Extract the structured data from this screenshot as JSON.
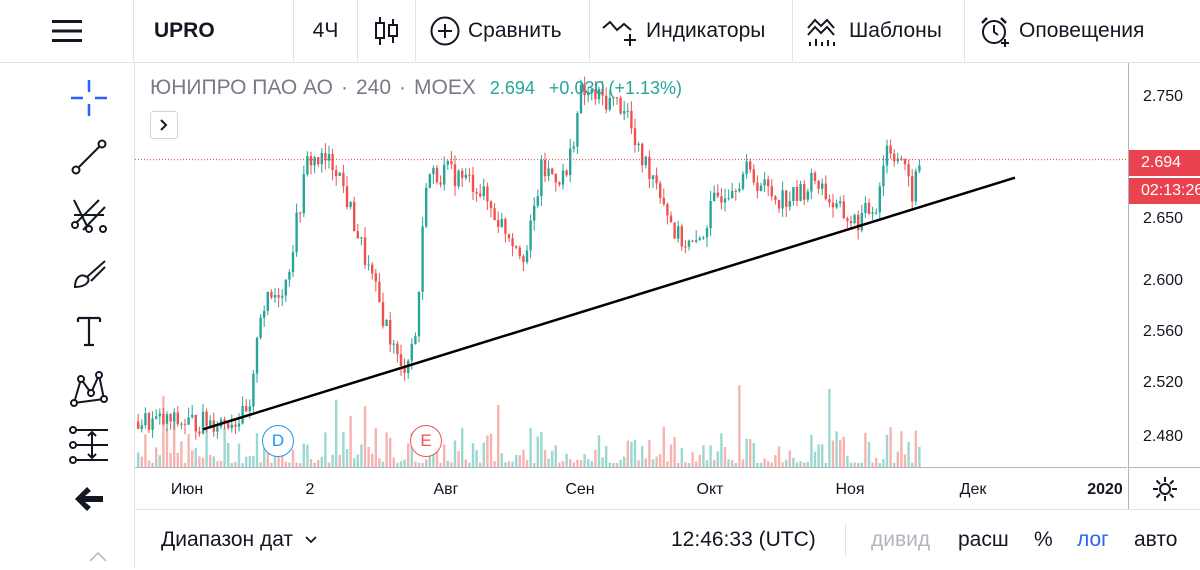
{
  "toolbar": {
    "symbol": "UPRO",
    "interval": "4Ч",
    "compare_label": "Сравнить",
    "indicators_label": "Индикаторы",
    "templates_label": "Шаблоны",
    "alerts_label": "Оповещения"
  },
  "legend": {
    "name": "ЮНИПРО ПАО АО",
    "interval": "240",
    "exchange": "MOEX",
    "last": "2.694",
    "change": "+0.030",
    "change_pct": "(+1.13%)",
    "sep": "·"
  },
  "price_scale": {
    "ticks": [
      "2.750",
      "2.650",
      "2.600",
      "2.560",
      "2.520",
      "2.480"
    ],
    "current_price": "2.694",
    "countdown": "02:13:26",
    "price_color": "#e8434f"
  },
  "time_axis": {
    "labels": [
      "Июн",
      "2",
      "Авг",
      "Сен",
      "Окт",
      "Ноя",
      "Дек",
      "2020"
    ]
  },
  "events": {
    "dividend": "D",
    "earnings": "E"
  },
  "bottom": {
    "date_range": "Диапазон дат",
    "time": "12:46:33 (UTC)",
    "divid": "дивид",
    "ext": "расш",
    "percent": "%",
    "log": "лог",
    "auto": "авто"
  },
  "colors": {
    "up": "#26a69a",
    "down": "#ef5350",
    "accent": "#2962ff"
  },
  "chart_data": {
    "type": "candlestick",
    "symbol": "UPRO",
    "interval": "240",
    "last_price": 2.694,
    "y_ticks": [
      2.48,
      2.52,
      2.56,
      2.6,
      2.65,
      2.75
    ],
    "ylim": [
      2.46,
      2.77
    ],
    "x_labels": [
      "Июн",
      "2",
      "Авг",
      "Сен",
      "Окт",
      "Ноя",
      "Дек",
      "2020"
    ],
    "trendline": {
      "from": 2.486,
      "to": 2.68
    }
  }
}
